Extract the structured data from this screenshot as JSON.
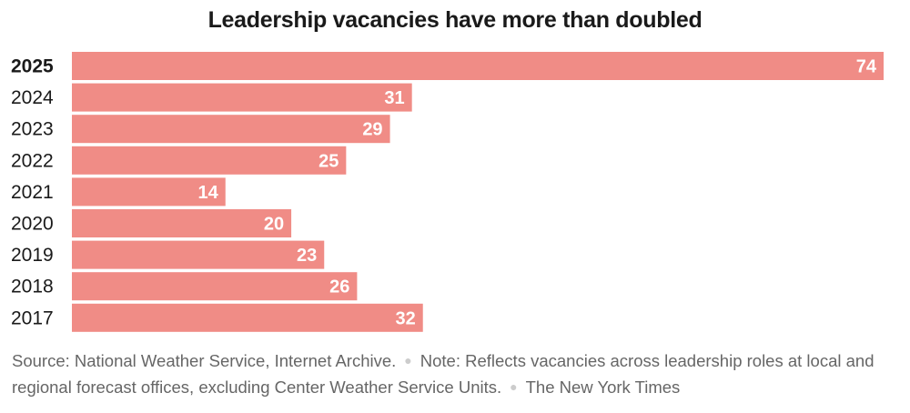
{
  "chart_data": {
    "type": "bar",
    "orientation": "horizontal",
    "title": "Leadership vacancies have more than doubled",
    "categories": [
      "2025",
      "2024",
      "2023",
      "2022",
      "2021",
      "2020",
      "2019",
      "2018",
      "2017"
    ],
    "values": [
      74,
      31,
      29,
      25,
      14,
      20,
      23,
      26,
      32
    ],
    "highlight": "2025",
    "bar_color": "#f08c86",
    "xlim": [
      0,
      74
    ],
    "xlabel": "",
    "ylabel": "",
    "grid": false
  },
  "footer": {
    "source": "Source: National Weather Service, Internet Archive.",
    "note": "Note: Reflects vacancies across leadership roles at local and regional forecast offices, excluding Center Weather Service Units.",
    "credit": "The New York Times"
  }
}
